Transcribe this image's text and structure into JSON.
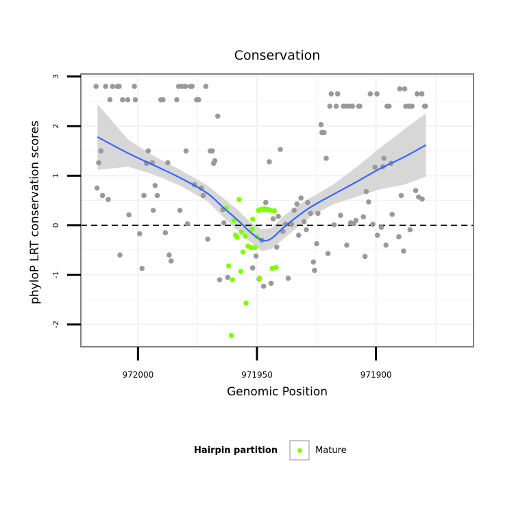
{
  "chart_data": {
    "type": "scatter",
    "title": "Conservation",
    "xlabel": "Genomic Position",
    "ylabel": "phyloP LRT conservation scores",
    "x_reversed": true,
    "xlim": [
      972024,
      971859
    ],
    "ylim": [
      -2.45,
      3.05
    ],
    "x_ticks": [
      972000,
      971950,
      971900
    ],
    "x_tick_labels": [
      "972000",
      "971950",
      "971900"
    ],
    "y_ticks": [
      -2,
      -1,
      0,
      1,
      2,
      3
    ],
    "y_tick_labels": [
      "-2",
      "-1",
      "0",
      "1",
      "2",
      "3"
    ],
    "hline": 0,
    "legend": {
      "title": "Hairpin partition",
      "entries": [
        {
          "label": "Mature",
          "color": "#80ff00"
        }
      ],
      "position": "bottom"
    },
    "colors": {
      "other": "#999999",
      "mature": "#80ff00",
      "smooth": "#3366ff",
      "band": "#d3d3d3",
      "panel_border": "#808080",
      "grid": "#f2f2f2"
    },
    "series": [
      {
        "name": "Other",
        "points": [
          [
            972017.6,
            2.8
          ],
          [
            972016.5,
            1.26
          ],
          [
            972015.6,
            1.5
          ],
          [
            972017.2,
            0.75
          ],
          [
            972013.6,
            2.8
          ],
          [
            972014.9,
            0.6
          ],
          [
            972012.5,
            0.52
          ],
          [
            972010.7,
            2.8
          ],
          [
            972011.8,
            2.53
          ],
          [
            972008.6,
            2.8
          ],
          [
            972007.9,
            2.8
          ],
          [
            972007.6,
            -0.6
          ],
          [
            972006.5,
            2.53
          ],
          [
            972004.3,
            2.53
          ],
          [
            972003.8,
            0.21
          ],
          [
            972001.5,
            2.8
          ],
          [
            972001.1,
            2.53
          ],
          [
            971999.3,
            -0.17
          ],
          [
            971998.3,
            -0.87
          ],
          [
            971997.5,
            0.6
          ],
          [
            971996.4,
            1.25
          ],
          [
            971995.7,
            1.5
          ],
          [
            971994.0,
            1.26
          ],
          [
            971993.6,
            0.3
          ],
          [
            971992.8,
            0.8
          ],
          [
            971991.9,
            0.6
          ],
          [
            971990.4,
            2.53
          ],
          [
            971989.5,
            2.53
          ],
          [
            971988.5,
            -0.15
          ],
          [
            971987.5,
            1.26
          ],
          [
            971986.9,
            -0.6
          ],
          [
            971986.1,
            -0.72
          ],
          [
            971982.9,
            2.8
          ],
          [
            971983.7,
            2.53
          ],
          [
            971982.4,
            0.3
          ],
          [
            971981.5,
            2.8
          ],
          [
            971980.0,
            2.8
          ],
          [
            971979.8,
            1.5
          ],
          [
            971979.2,
            0.03
          ],
          [
            971977.9,
            2.8
          ],
          [
            971977.3,
            2.8
          ],
          [
            971976.3,
            0.82
          ],
          [
            971975.4,
            2.53
          ],
          [
            971974.5,
            2.53
          ],
          [
            971973.4,
            0.75
          ],
          [
            971972.6,
            0.6
          ],
          [
            971971.5,
            2.8
          ],
          [
            971970.7,
            -0.28
          ],
          [
            971969.6,
            1.5
          ],
          [
            971968.8,
            1.5
          ],
          [
            971968.2,
            1.25
          ],
          [
            971967.7,
            1.3
          ],
          [
            971966.5,
            2.2
          ],
          [
            971965.7,
            -1.1
          ],
          [
            971964.3,
            0.32
          ],
          [
            971963.9,
            0.05
          ],
          [
            971962.3,
            -1.05
          ],
          [
            971951.8,
            -0.86
          ],
          [
            971950.4,
            -0.62
          ],
          [
            971948.0,
            -0.3
          ],
          [
            971949.1,
            -1.08
          ],
          [
            971947.2,
            -1.23
          ],
          [
            971946.3,
            0.46
          ],
          [
            971944.8,
            1.28
          ],
          [
            971944.1,
            -1.17
          ],
          [
            971943.2,
            0.13
          ],
          [
            971941.7,
            -0.44
          ],
          [
            971941.0,
            0.18
          ],
          [
            971940.2,
            1.53
          ],
          [
            971939.1,
            -0.12
          ],
          [
            971938.0,
            0.02
          ],
          [
            971936.9,
            -1.07
          ],
          [
            971935.5,
            0.02
          ],
          [
            971934.4,
            0.3
          ],
          [
            971933.2,
            0.43
          ],
          [
            971932.5,
            -0.2
          ],
          [
            971931.5,
            0.55
          ],
          [
            971930.2,
            0.07
          ],
          [
            971929.3,
            -0.09
          ],
          [
            971928.7,
            0.46
          ],
          [
            971927.5,
            0.24
          ],
          [
            971926.3,
            -0.74
          ],
          [
            971925.8,
            -0.91
          ],
          [
            971924.9,
            -0.37
          ],
          [
            971924.4,
            0.24
          ],
          [
            971923.1,
            2.03
          ],
          [
            971922.7,
            1.87
          ],
          [
            971921.8,
            1.87
          ],
          [
            971920.9,
            1.35
          ],
          [
            971920.2,
            -0.57
          ],
          [
            971919.4,
            2.4
          ],
          [
            971918.8,
            2.65
          ],
          [
            971917.6,
            0.01
          ],
          [
            971916.7,
            2.4
          ],
          [
            971916.1,
            2.65
          ],
          [
            971914.9,
            0.2
          ],
          [
            971913.7,
            2.4
          ],
          [
            971912.7,
            2.4
          ],
          [
            971912.3,
            -0.4
          ],
          [
            971911.2,
            2.4
          ],
          [
            971910.6,
            0.05
          ],
          [
            971909.9,
            2.4
          ],
          [
            971909.3,
            0.03
          ],
          [
            971908.4,
            0.1
          ],
          [
            971907.3,
            2.4
          ],
          [
            971906.8,
            2.4
          ],
          [
            971905.3,
            0.17
          ],
          [
            971904.6,
            -0.63
          ],
          [
            971904.1,
            0.68
          ],
          [
            971903.1,
            0.47
          ],
          [
            971902.4,
            2.65
          ],
          [
            971901.3,
            0.02
          ],
          [
            971900.4,
            1.17
          ],
          [
            971899.6,
            2.65
          ],
          [
            971899.4,
            -0.2
          ],
          [
            971897.8,
            -0.04
          ],
          [
            971897.1,
            1.18
          ],
          [
            971896.7,
            1.35
          ],
          [
            971895.8,
            -0.4
          ],
          [
            971895.4,
            2.4
          ],
          [
            971894.5,
            2.4
          ],
          [
            971893.7,
            1.25
          ],
          [
            971893.2,
            0.22
          ],
          [
            971890.4,
            -0.23
          ],
          [
            971890.0,
            2.75
          ],
          [
            971889.4,
            0.6
          ],
          [
            971888.4,
            -0.52
          ],
          [
            971887.9,
            2.75
          ],
          [
            971887.5,
            2.4
          ],
          [
            971886.3,
            2.4
          ],
          [
            971885.7,
            -0.09
          ],
          [
            971885.3,
            2.4
          ],
          [
            971884.8,
            2.4
          ],
          [
            971883.3,
            0.7
          ],
          [
            971882.7,
            2.65
          ],
          [
            971882.1,
            0.57
          ],
          [
            971880.7,
            2.65
          ],
          [
            971880.6,
            0.53
          ],
          [
            971879.6,
            2.4
          ],
          [
            971879.2,
            2.4
          ]
        ]
      },
      {
        "name": "Mature",
        "points": [
          [
            971963.0,
            0.35
          ],
          [
            971961.9,
            -0.82
          ],
          [
            971960.8,
            -2.22
          ],
          [
            971960.3,
            -1.1
          ],
          [
            971959.6,
            0.1
          ],
          [
            971959.0,
            -0.2
          ],
          [
            971958.4,
            -0.24
          ],
          [
            971957.5,
            0.52
          ],
          [
            971956.8,
            -0.93
          ],
          [
            971956.5,
            -0.14
          ],
          [
            971955.9,
            -0.54
          ],
          [
            971954.9,
            -0.22
          ],
          [
            971954.6,
            -1.57
          ],
          [
            971953.8,
            -0.42
          ],
          [
            971952.5,
            -0.45
          ],
          [
            971952.0,
            -0.08
          ],
          [
            971951.8,
            0.12
          ],
          [
            971950.8,
            -0.45
          ],
          [
            971950.0,
            -0.23
          ],
          [
            971949.4,
            0.3
          ],
          [
            971948.9,
            -1.07
          ],
          [
            971948.4,
            0.32
          ],
          [
            971947.5,
            0.32
          ],
          [
            971946.9,
            0.33
          ],
          [
            971946.2,
            0.32
          ],
          [
            971945.4,
            0.32
          ],
          [
            971944.3,
            0.3
          ],
          [
            971943.6,
            -0.87
          ],
          [
            971942.7,
            0.29
          ],
          [
            971942.0,
            -0.85
          ]
        ]
      }
    ],
    "smooth": {
      "x": [
        972017,
        972004,
        971992,
        971982,
        971971,
        971964,
        971958,
        971953,
        971948,
        971944,
        971939,
        971933,
        971927,
        971918,
        971908,
        971898,
        971888,
        971879
      ],
      "y": [
        1.78,
        1.45,
        1.18,
        0.95,
        0.65,
        0.35,
        0.1,
        -0.13,
        -0.3,
        -0.27,
        -0.05,
        0.18,
        0.38,
        0.62,
        0.88,
        1.15,
        1.38,
        1.62
      ],
      "lower": [
        1.12,
        1.18,
        1.0,
        0.79,
        0.49,
        0.16,
        -0.11,
        -0.33,
        -0.52,
        -0.48,
        -0.28,
        -0.04,
        0.19,
        0.42,
        0.58,
        0.73,
        0.82,
        0.98
      ],
      "upper": [
        2.44,
        1.72,
        1.36,
        1.11,
        0.81,
        0.54,
        0.31,
        0.07,
        -0.08,
        -0.06,
        0.18,
        0.4,
        0.57,
        0.82,
        1.18,
        1.57,
        1.94,
        2.26
      ]
    }
  }
}
